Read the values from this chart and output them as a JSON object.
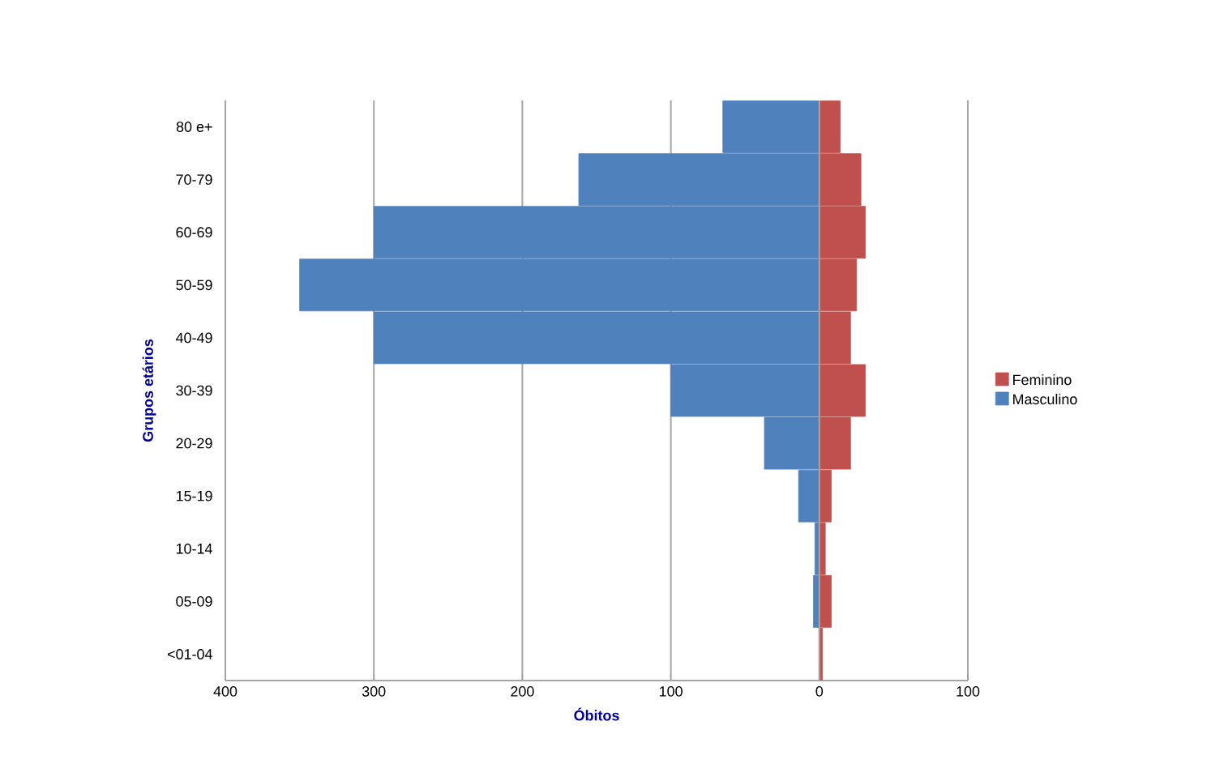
{
  "chart_data": {
    "type": "bar",
    "orientation": "horizontal",
    "xlabel": "Óbitos",
    "ylabel": "Grupos etários",
    "categories": [
      "80 e+",
      "70-79",
      "60-69",
      "50-59",
      "40-49",
      "30-39",
      "20-29",
      "15-19",
      "10-14",
      "05-09",
      "<01-04"
    ],
    "series": [
      {
        "name": "Feminino",
        "color": "#c0504d",
        "values": [
          14,
          28,
          31,
          25,
          21,
          31,
          21,
          8,
          4,
          8,
          2
        ]
      },
      {
        "name": "Masculino",
        "color": "#4f81bd",
        "values": [
          -65,
          -162,
          -300,
          -350,
          -300,
          -100,
          -37,
          -14,
          -3,
          -4,
          0
        ]
      }
    ],
    "xlim": [
      -400,
      100
    ],
    "xticks": [
      {
        "value": -400,
        "label": "400"
      },
      {
        "value": -300,
        "label": "300"
      },
      {
        "value": -200,
        "label": "200"
      },
      {
        "value": -100,
        "label": "100"
      },
      0,
      100
    ],
    "grid": "x",
    "legend": "right",
    "stacked": true
  }
}
